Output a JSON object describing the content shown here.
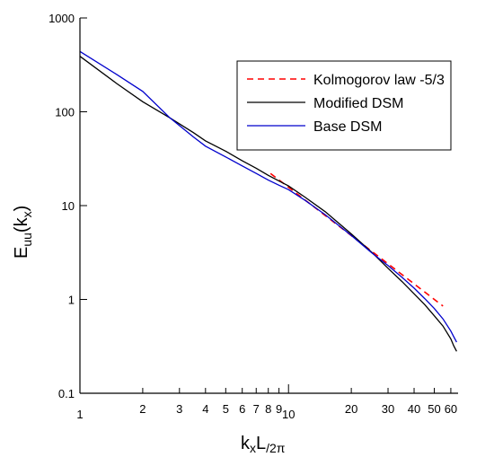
{
  "chart_data": {
    "type": "line",
    "x_scale": "log",
    "y_scale": "log",
    "xlim": [
      1,
      65
    ],
    "ylim": [
      0.1,
      1000
    ],
    "x_major_ticks": [
      {
        "value": 1,
        "label": "1"
      },
      {
        "value": 10,
        "label": "10"
      }
    ],
    "x_minor_ticks": [
      {
        "value": 2,
        "label": "2"
      },
      {
        "value": 3,
        "label": "3"
      },
      {
        "value": 4,
        "label": "4"
      },
      {
        "value": 5,
        "label": "5"
      },
      {
        "value": 6,
        "label": "6"
      },
      {
        "value": 7,
        "label": "7"
      },
      {
        "value": 8,
        "label": "8"
      },
      {
        "value": 9,
        "label": "9"
      },
      {
        "value": 20,
        "label": "20"
      },
      {
        "value": 30,
        "label": "30"
      },
      {
        "value": 40,
        "label": "40"
      },
      {
        "value": 50,
        "label": "50"
      },
      {
        "value": 60,
        "label": "60"
      }
    ],
    "y_ticks": [
      {
        "value": 0.1,
        "label": "0.1"
      },
      {
        "value": 1,
        "label": "1"
      },
      {
        "value": 10,
        "label": "10"
      },
      {
        "value": 100,
        "label": "100"
      },
      {
        "value": 1000,
        "label": "1000"
      }
    ],
    "xlabel": {
      "base": "k",
      "sub": "x",
      "mid": "L",
      "tail": "/2π"
    },
    "ylabel": {
      "base": "E",
      "sub": "uu",
      "tail": "(k",
      "sub2": "x",
      "close": ")"
    },
    "grid": false,
    "legend_position": "top-right",
    "series": [
      {
        "name": "Kolmogorov law -5/3",
        "color": "#ff0000",
        "style": "dashed",
        "x": [
          8.2,
          55
        ],
        "y": [
          22,
          0.85
        ]
      },
      {
        "name": "Modified DSM",
        "color": "#000000",
        "style": "solid",
        "x": [
          1,
          1.5,
          2,
          2.7,
          3.5,
          4,
          5,
          6,
          7,
          8,
          9,
          10,
          12,
          15,
          20,
          25,
          30,
          35,
          40,
          45,
          50,
          55,
          60,
          62,
          64
        ],
        "y": [
          390,
          200,
          128,
          86,
          60,
          49,
          38,
          30,
          25,
          21,
          18.3,
          16.2,
          12.3,
          8.6,
          5.0,
          3.2,
          2.15,
          1.55,
          1.15,
          0.88,
          0.67,
          0.52,
          0.38,
          0.32,
          0.28
        ]
      },
      {
        "name": "Base DSM",
        "color": "#0000cc",
        "style": "solid",
        "x": [
          1,
          1.5,
          2,
          2.7,
          3.5,
          4,
          5,
          6,
          7,
          8,
          9,
          10,
          12,
          15,
          20,
          25,
          30,
          35,
          40,
          45,
          50,
          55,
          60,
          62,
          64
        ],
        "y": [
          440,
          250,
          165,
          86,
          54,
          43,
          33,
          26.5,
          22,
          18.7,
          16.5,
          14.8,
          11.4,
          8.0,
          4.8,
          3.15,
          2.3,
          1.72,
          1.32,
          1.02,
          0.8,
          0.62,
          0.46,
          0.4,
          0.35
        ]
      }
    ]
  }
}
